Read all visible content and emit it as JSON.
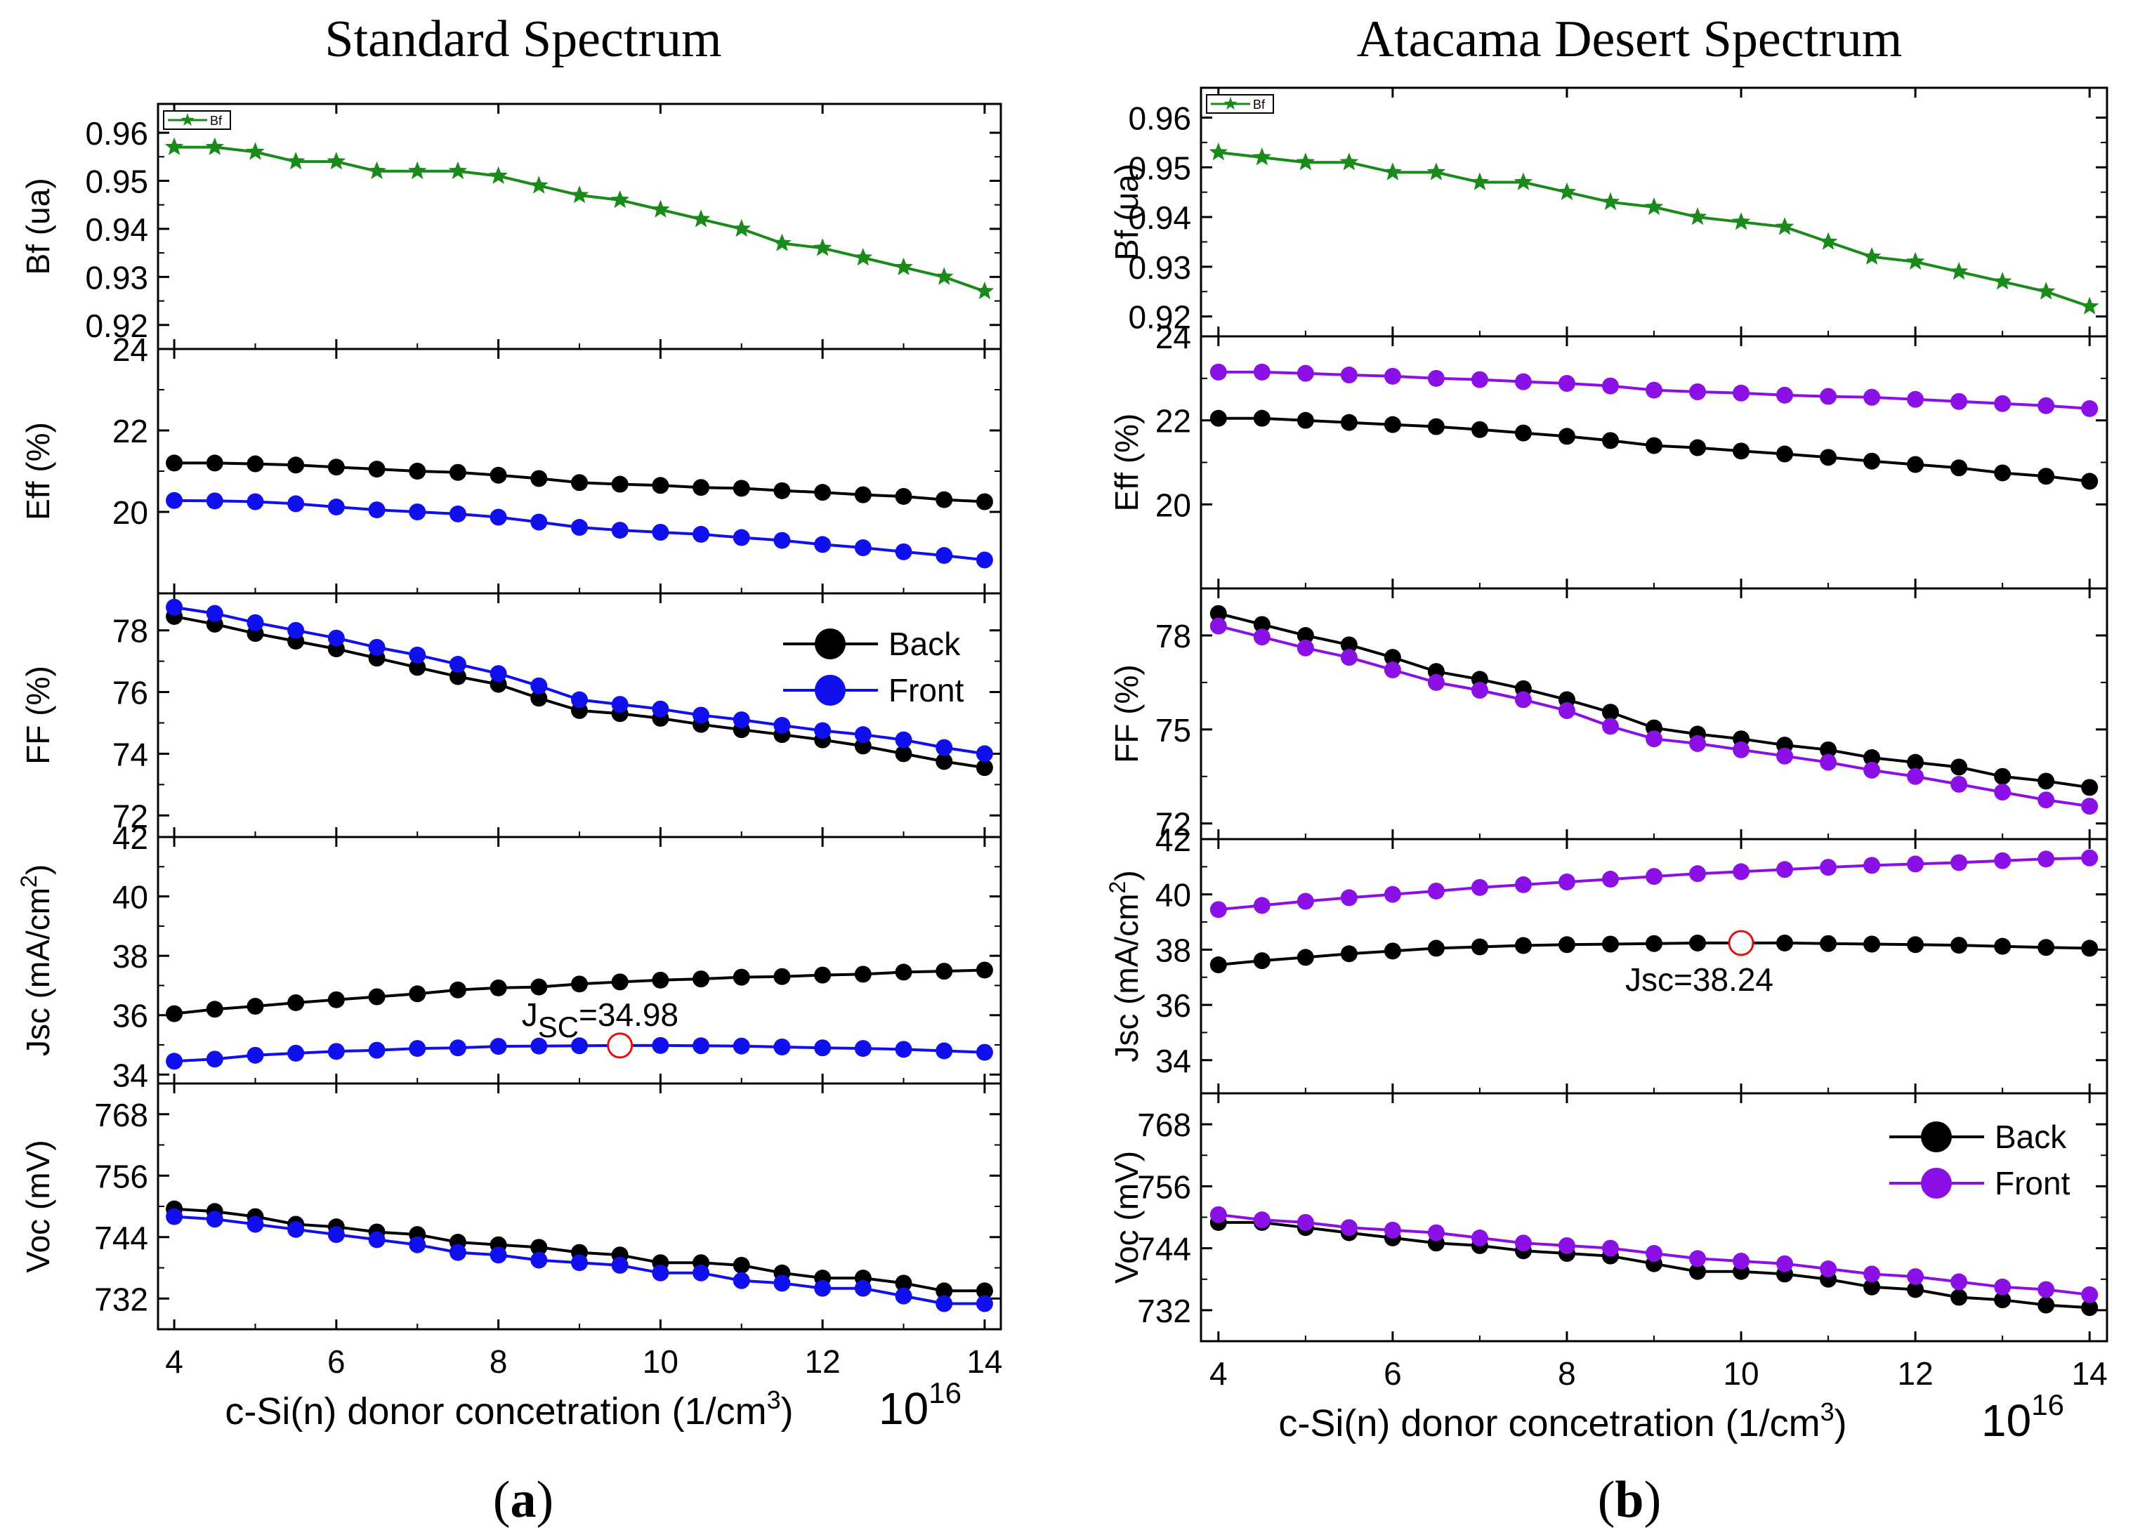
{
  "figure": {
    "exponent": "10",
    "exponent_power": "16"
  },
  "chart_data": [
    {
      "type": "line",
      "panel_id": "a",
      "title": "Standard Spectrum",
      "caption": "(a)",
      "xlabel": "c-Si(n) donor concetration  (1/cm",
      "xlabel_sup": "3",
      "xlabel_end": ")",
      "xlim": [
        3.8,
        14.2
      ],
      "xticks": [
        4,
        6,
        8,
        10,
        12,
        14
      ],
      "x": [
        4,
        4.5,
        5,
        5.5,
        6,
        6.5,
        7,
        7.5,
        8,
        8.5,
        9,
        9.5,
        10,
        10.5,
        11,
        11.5,
        12,
        12.5,
        13,
        13.5,
        14
      ],
      "subplots": [
        {
          "key": "bf",
          "ylabel": "Bf (ua)",
          "ylim": [
            0.915,
            0.966
          ],
          "yticks": [
            0.92,
            0.93,
            0.94,
            0.95,
            0.96
          ],
          "ytick_labels": [
            "0.92",
            "0.93",
            "0.94",
            "0.95",
            "0.96"
          ],
          "legend": {
            "position": "top-left",
            "entries": [
              "Bf"
            ]
          },
          "series": [
            {
              "name": "Bf",
              "color": "#1a8a1a",
              "marker": "star",
              "values": [
                0.957,
                0.957,
                0.956,
                0.954,
                0.954,
                0.952,
                0.952,
                0.952,
                0.951,
                0.949,
                0.947,
                0.946,
                0.944,
                0.942,
                0.94,
                0.937,
                0.936,
                0.934,
                0.932,
                0.93,
                0.927
              ]
            }
          ]
        },
        {
          "key": "eff",
          "ylabel": "Eff (%)",
          "ylim": [
            18.0,
            24.0
          ],
          "yticks": [
            20,
            22,
            24
          ],
          "ytick_labels": [
            "20",
            "22",
            "24"
          ],
          "series": [
            {
              "name": "Back",
              "color": "#000000",
              "marker": "circle",
              "values": [
                21.2,
                21.2,
                21.18,
                21.15,
                21.1,
                21.05,
                21.0,
                20.97,
                20.9,
                20.82,
                20.72,
                20.68,
                20.65,
                20.6,
                20.58,
                20.52,
                20.48,
                20.42,
                20.38,
                20.3,
                20.25
              ]
            },
            {
              "name": "Front",
              "color": "#1010ee",
              "marker": "circle",
              "values": [
                20.28,
                20.27,
                20.25,
                20.2,
                20.12,
                20.05,
                20.0,
                19.95,
                19.87,
                19.75,
                19.62,
                19.55,
                19.5,
                19.45,
                19.37,
                19.3,
                19.2,
                19.12,
                19.02,
                18.93,
                18.82
              ]
            }
          ]
        },
        {
          "key": "ff",
          "ylabel": "FF (%)",
          "ylim": [
            71.3,
            79.2
          ],
          "yticks": [
            72,
            74,
            76,
            78
          ],
          "ytick_labels": [
            "72",
            "74",
            "76",
            "78"
          ],
          "legend": {
            "position": "right",
            "entries": [
              "Back",
              "Front"
            ]
          },
          "series": [
            {
              "name": "Back",
              "color": "#000000",
              "marker": "circle",
              "values": [
                78.45,
                78.2,
                77.9,
                77.65,
                77.4,
                77.1,
                76.8,
                76.5,
                76.25,
                75.8,
                75.4,
                75.3,
                75.15,
                74.95,
                74.78,
                74.62,
                74.45,
                74.25,
                74.0,
                73.75,
                73.55
              ]
            },
            {
              "name": "Front",
              "color": "#1010ee",
              "marker": "circle",
              "values": [
                78.75,
                78.55,
                78.25,
                78.0,
                77.75,
                77.45,
                77.2,
                76.9,
                76.6,
                76.2,
                75.75,
                75.6,
                75.45,
                75.25,
                75.1,
                74.92,
                74.75,
                74.62,
                74.45,
                74.2,
                74.0
              ]
            }
          ]
        },
        {
          "key": "jsc",
          "ylabel": "Jsc (mA/cm",
          "ylabel_sup": "2",
          "ylabel_end": ")",
          "ylim": [
            33.7,
            42.0
          ],
          "yticks": [
            34,
            36,
            38,
            40,
            42
          ],
          "ytick_labels": [
            "34",
            "36",
            "38",
            "40",
            "42"
          ],
          "annotation": {
            "text": "J",
            "sub": "SC",
            "rest": "=34.98",
            "x": 9.5,
            "y": 34.98
          },
          "series": [
            {
              "name": "Back",
              "color": "#000000",
              "marker": "circle",
              "values": [
                36.05,
                36.2,
                36.3,
                36.42,
                36.52,
                36.62,
                36.72,
                36.85,
                36.92,
                36.95,
                37.05,
                37.12,
                37.18,
                37.22,
                37.28,
                37.3,
                37.35,
                37.38,
                37.45,
                37.48,
                37.52
              ]
            },
            {
              "name": "Front",
              "color": "#1010ee",
              "marker": "circle",
              "values": [
                34.45,
                34.52,
                34.65,
                34.72,
                34.78,
                34.82,
                34.88,
                34.9,
                34.95,
                34.96,
                34.97,
                34.98,
                34.98,
                34.97,
                34.96,
                34.93,
                34.9,
                34.88,
                34.85,
                34.8,
                34.75
              ]
            }
          ]
        },
        {
          "key": "voc",
          "ylabel": "Voc (mV)",
          "ylim": [
            726.0,
            774.0
          ],
          "yticks": [
            732,
            744,
            756,
            768
          ],
          "ytick_labels": [
            "732",
            "744",
            "756",
            "768"
          ],
          "series": [
            {
              "name": "Back",
              "color": "#000000",
              "marker": "circle",
              "values": [
                749.5,
                749.0,
                748.0,
                746.5,
                746.0,
                745.0,
                744.5,
                743.0,
                742.5,
                742.0,
                741.0,
                740.5,
                739.0,
                739.0,
                738.5,
                737.0,
                736.0,
                736.0,
                735.0,
                733.5,
                733.5
              ]
            },
            {
              "name": "Front",
              "color": "#1010ee",
              "marker": "circle",
              "values": [
                748.0,
                747.5,
                746.5,
                745.5,
                744.5,
                743.5,
                742.5,
                741.0,
                740.5,
                739.5,
                739.0,
                738.5,
                737.0,
                737.0,
                735.5,
                735.0,
                734.0,
                734.0,
                732.5,
                731.0,
                731.0
              ]
            }
          ]
        }
      ]
    },
    {
      "type": "line",
      "panel_id": "b",
      "title": "Atacama Desert Spectrum",
      "caption": "(b)",
      "xlabel": "c-Si(n) donor concetration  (1/cm",
      "xlabel_sup": "3",
      "xlabel_end": ")",
      "xlim": [
        3.8,
        14.2
      ],
      "xticks": [
        4,
        6,
        8,
        10,
        12,
        14
      ],
      "x": [
        4,
        4.5,
        5,
        5.5,
        6,
        6.5,
        7,
        7.5,
        8,
        8.5,
        9,
        9.5,
        10,
        10.5,
        11,
        11.5,
        12,
        12.5,
        13,
        13.5,
        14
      ],
      "subplots": [
        {
          "key": "bf",
          "ylabel": "Bf (ua)",
          "ylim": [
            0.916,
            0.966
          ],
          "yticks": [
            0.92,
            0.93,
            0.94,
            0.95,
            0.96
          ],
          "ytick_labels": [
            "0.92",
            "0.93",
            "0.94",
            "0.95",
            "0.96"
          ],
          "legend": {
            "position": "top-left",
            "entries": [
              "Bf"
            ]
          },
          "series": [
            {
              "name": "Bf",
              "color": "#1a8a1a",
              "marker": "star",
              "values": [
                0.953,
                0.952,
                0.951,
                0.951,
                0.949,
                0.949,
                0.947,
                0.947,
                0.945,
                0.943,
                0.942,
                0.94,
                0.939,
                0.938,
                0.935,
                0.932,
                0.931,
                0.929,
                0.927,
                0.925,
                0.922
              ]
            }
          ]
        },
        {
          "key": "eff",
          "ylabel": "Eff (%)",
          "ylim": [
            18.0,
            24.0
          ],
          "yticks": [
            20,
            22,
            24
          ],
          "ytick_labels": [
            "20",
            "22",
            "24"
          ],
          "series": [
            {
              "name": "Back",
              "color": "#000000",
              "marker": "circle",
              "values": [
                22.05,
                22.05,
                22.0,
                21.95,
                21.9,
                21.85,
                21.78,
                21.7,
                21.62,
                21.52,
                21.4,
                21.35,
                21.27,
                21.2,
                21.12,
                21.03,
                20.95,
                20.87,
                20.75,
                20.67,
                20.55
              ]
            },
            {
              "name": "Front",
              "color": "#8b10e6",
              "marker": "circle",
              "values": [
                23.15,
                23.15,
                23.12,
                23.08,
                23.05,
                23.0,
                22.97,
                22.92,
                22.88,
                22.82,
                22.72,
                22.68,
                22.65,
                22.6,
                22.57,
                22.55,
                22.5,
                22.45,
                22.4,
                22.35,
                22.28
              ]
            }
          ]
        },
        {
          "key": "ff",
          "ylabel": "FF (%)",
          "ylim": [
            71.5,
            79.5
          ],
          "yticks": [
            72,
            75,
            78
          ],
          "ytick_labels": [
            "72",
            "75",
            "78"
          ],
          "series": [
            {
              "name": "Back",
              "color": "#000000",
              "marker": "circle",
              "values": [
                78.7,
                78.35,
                78.0,
                77.7,
                77.3,
                76.85,
                76.6,
                76.3,
                75.95,
                75.55,
                75.05,
                74.85,
                74.7,
                74.5,
                74.35,
                74.1,
                73.95,
                73.8,
                73.5,
                73.35,
                73.15
              ]
            },
            {
              "name": "Front",
              "color": "#8b10e6",
              "marker": "circle",
              "values": [
                78.3,
                77.95,
                77.6,
                77.3,
                76.9,
                76.5,
                76.25,
                75.95,
                75.6,
                75.1,
                74.7,
                74.55,
                74.35,
                74.15,
                73.95,
                73.7,
                73.5,
                73.25,
                73.0,
                72.75,
                72.55
              ]
            }
          ]
        },
        {
          "key": "jsc",
          "ylabel": "Jsc (mA/cm",
          "ylabel_sup": "2",
          "ylabel_end": ")",
          "ylim": [
            32.8,
            42.0
          ],
          "yticks": [
            34,
            36,
            38,
            40,
            42
          ],
          "ytick_labels": [
            "34",
            "36",
            "38",
            "40",
            "42"
          ],
          "annotation": {
            "text": "Jsc=38.24",
            "sub": "",
            "rest": "",
            "x": 10,
            "y": 38.24
          },
          "series": [
            {
              "name": "Back",
              "color": "#000000",
              "marker": "circle",
              "values": [
                37.45,
                37.6,
                37.72,
                37.85,
                37.95,
                38.05,
                38.1,
                38.15,
                38.18,
                38.2,
                38.22,
                38.24,
                38.24,
                38.24,
                38.22,
                38.2,
                38.18,
                38.16,
                38.12,
                38.08,
                38.05
              ]
            },
            {
              "name": "Front",
              "color": "#8b10e6",
              "marker": "circle",
              "values": [
                39.45,
                39.6,
                39.75,
                39.88,
                40.0,
                40.12,
                40.25,
                40.35,
                40.45,
                40.55,
                40.65,
                40.75,
                40.82,
                40.9,
                40.98,
                41.05,
                41.1,
                41.15,
                41.22,
                41.28,
                41.32
              ]
            }
          ]
        },
        {
          "key": "voc",
          "ylabel": "Voc (mV)",
          "ylim": [
            726.0,
            774.0
          ],
          "yticks": [
            732,
            744,
            756,
            768
          ],
          "ytick_labels": [
            "732",
            "744",
            "756",
            "768"
          ],
          "legend": {
            "position": "right",
            "entries": [
              "Back",
              "Front"
            ]
          },
          "series": [
            {
              "name": "Back",
              "color": "#000000",
              "marker": "circle",
              "values": [
                749.0,
                749.0,
                748.0,
                747.0,
                746.0,
                745.0,
                744.5,
                743.5,
                743.0,
                742.5,
                741.0,
                739.5,
                739.5,
                739.0,
                738.0,
                736.5,
                736.0,
                734.5,
                734.0,
                733.0,
                732.5
              ]
            },
            {
              "name": "Front",
              "color": "#8b10e6",
              "marker": "circle",
              "values": [
                750.5,
                749.5,
                749.0,
                748.0,
                747.5,
                747.0,
                746.0,
                745.0,
                744.5,
                744.0,
                743.0,
                742.0,
                741.5,
                741.0,
                740.0,
                739.0,
                738.5,
                737.5,
                736.5,
                736.0,
                735.0
              ]
            }
          ]
        }
      ]
    }
  ]
}
